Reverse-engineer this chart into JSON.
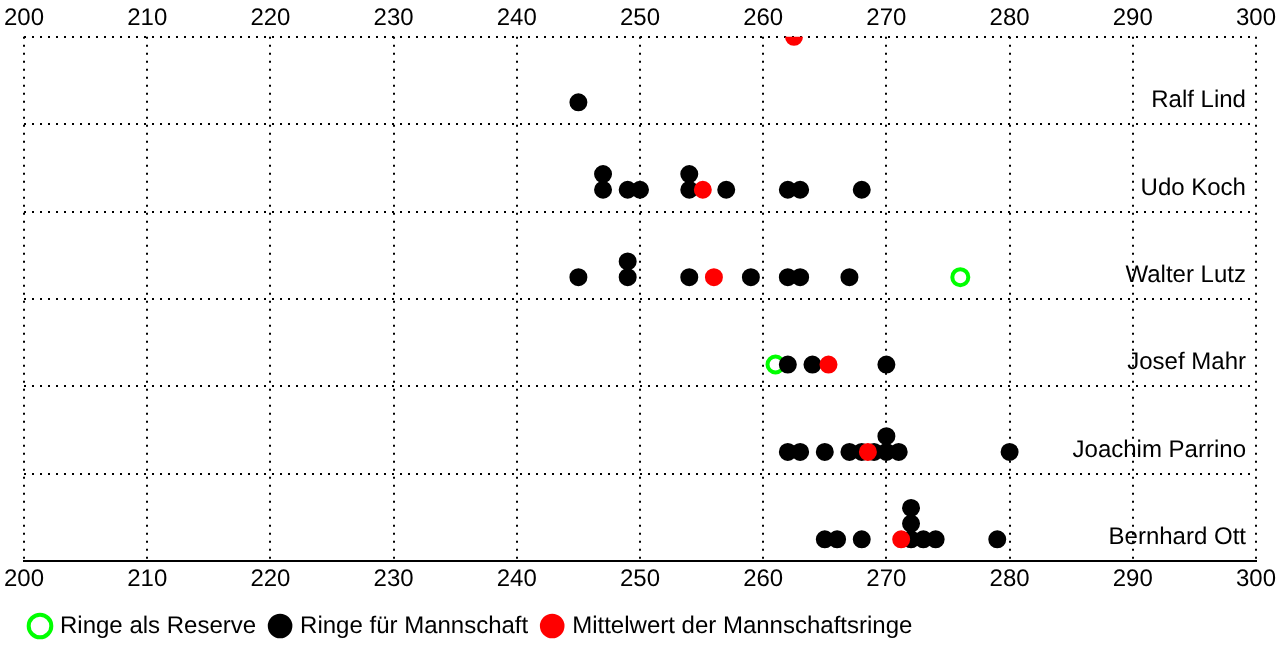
{
  "chart_data": {
    "type": "scatter",
    "orientation": "horizontal",
    "categories": [
      null,
      "Ralf Lind",
      "Udo Koch",
      "Walter Lutz",
      "Josef Mahr",
      "Joachim Parrino",
      "Bernhard Ott"
    ],
    "series": [
      {
        "name": "Ringe als Reserve",
        "color": "#00ff00",
        "x": [
          "Walter Lutz",
          "Josef Mahr"
        ],
        "values": [
          276,
          261
        ]
      },
      {
        "name": "Ringe für Mannschaft",
        "color": "#000000",
        "x": [
          "Ralf Lind",
          "Udo Koch",
          "Udo Koch",
          "Udo Koch",
          "Udo Koch",
          "Udo Koch",
          "Udo Koch",
          "Udo Koch",
          "Udo Koch",
          "Udo Koch",
          "Udo Koch",
          "Walter Lutz",
          "Walter Lutz",
          "Walter Lutz",
          "Walter Lutz",
          "Walter Lutz",
          "Walter Lutz",
          "Walter Lutz",
          "Walter Lutz",
          "Josef Mahr",
          "Josef Mahr",
          "Josef Mahr",
          "Joachim Parrino",
          "Joachim Parrino",
          "Joachim Parrino",
          "Joachim Parrino",
          "Joachim Parrino",
          "Joachim Parrino",
          "Joachim Parrino",
          "Joachim Parrino",
          "Joachim Parrino",
          "Joachim Parrino",
          "Bernhard Ott",
          "Bernhard Ott",
          "Bernhard Ott",
          "Bernhard Ott",
          "Bernhard Ott",
          "Bernhard Ott",
          "Bernhard Ott",
          "Bernhard Ott",
          "Bernhard Ott"
        ],
        "values": [
          245,
          247,
          247,
          249,
          250,
          254,
          254,
          257,
          262,
          263,
          268,
          245,
          249,
          249,
          254,
          259,
          262,
          263,
          267,
          262,
          264,
          270,
          262,
          263,
          265,
          267,
          268,
          269,
          270,
          270,
          271,
          280,
          265,
          266,
          268,
          272,
          272,
          272,
          273,
          274,
          279
        ]
      },
      {
        "name": "Mittelwert der Mannschaftsringe",
        "color": "#ff0000",
        "x": [
          null,
          "Udo Koch",
          "Walter Lutz",
          "Josef Mahr",
          "Joachim Parrino",
          "Bernhard Ott"
        ],
        "values": [
          262.5,
          255.1,
          256,
          265.3,
          268.5,
          271.2
        ]
      }
    ],
    "xlim": [
      200,
      300
    ],
    "xticks": [
      200,
      210,
      220,
      230,
      240,
      250,
      260,
      270,
      280,
      290,
      300
    ],
    "x2lim": [
      200,
      300
    ],
    "x2ticks": [
      200,
      210,
      220,
      230,
      240,
      250,
      260,
      270,
      280,
      290,
      300
    ],
    "grid": true,
    "legend": "bottom",
    "marker": "circle"
  }
}
